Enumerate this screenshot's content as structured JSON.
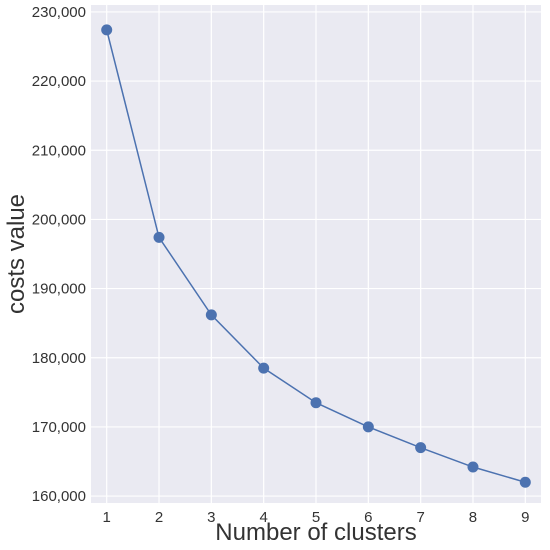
{
  "chart_data": {
    "type": "line",
    "title": "",
    "xlabel": "Number of clusters",
    "ylabel": "costs value",
    "x": [
      1,
      2,
      3,
      4,
      5,
      6,
      7,
      8,
      9
    ],
    "series": [
      {
        "values": [
          227400,
          197400,
          186200,
          178500,
          173500,
          170000,
          167000,
          164200,
          162000
        ],
        "color": "#4c72b0"
      }
    ],
    "xlim": [
      0.7,
      9.3
    ],
    "ylim": [
      159000,
      231000
    ],
    "xticks": [
      "1",
      "2",
      "3",
      "4",
      "5",
      "6",
      "7",
      "8",
      "9"
    ],
    "yticks": [
      "160,000",
      "170,000",
      "180,000",
      "190,000",
      "200,000",
      "210,000",
      "220,000",
      "230,000"
    ],
    "ytick_values": [
      160000,
      170000,
      180000,
      190000,
      200000,
      210000,
      220000,
      230000
    ],
    "grid": true,
    "plot_background": "#eaeaf2",
    "grid_color": "#ffffff"
  }
}
